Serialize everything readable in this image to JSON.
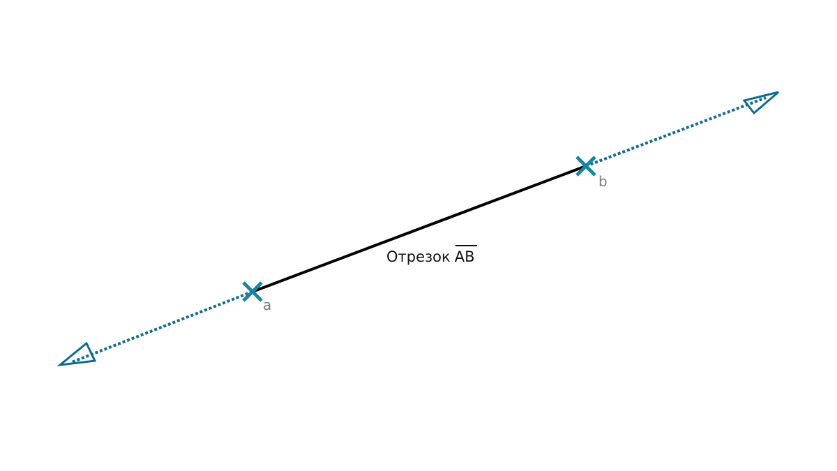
{
  "diagram": {
    "caption": {
      "prefix": "Отрезок",
      "overlined": "AB"
    },
    "points": {
      "a": {
        "label": "a"
      },
      "b": {
        "label": "b"
      }
    },
    "colors": {
      "segment": "#000000",
      "line_extension": "#0e6b94",
      "marker": "#1785a6",
      "point_label": "#7a7a7a",
      "caption": "#111111"
    },
    "line_style": {
      "segment": "solid",
      "extensions": "dotted",
      "arrowheads": "open-triangle"
    },
    "marker_icon": "cross-marker-icon"
  }
}
